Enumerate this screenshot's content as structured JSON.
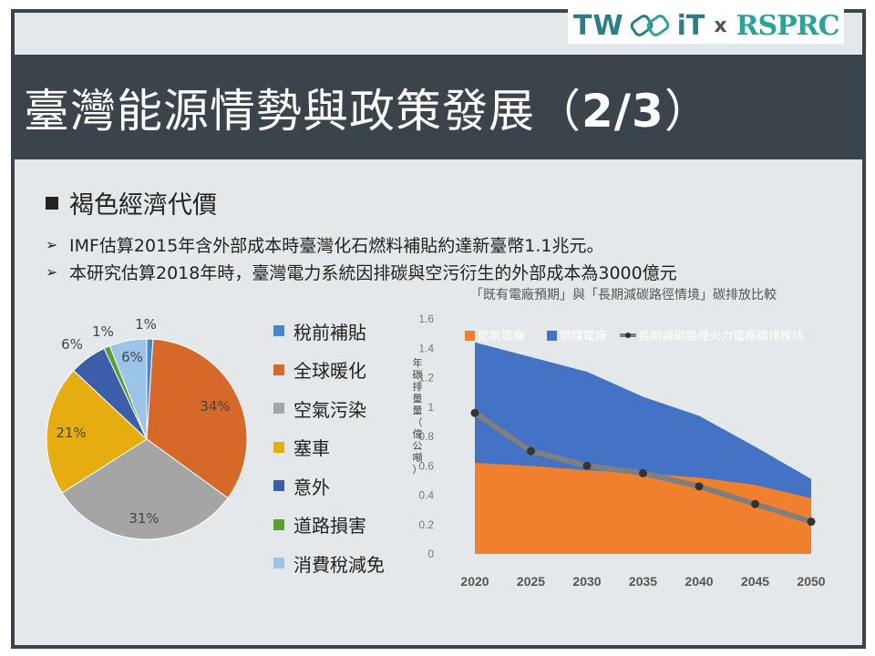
{
  "logo": {
    "left": "TW",
    "right_it": "iT",
    "x": "x",
    "partner": "RSPRC"
  },
  "title": {
    "main": "臺灣能源情勢與政策發展（",
    "part": "2/3",
    "close": "）"
  },
  "section": "褐色經濟代價",
  "bullets": [
    "IMF估算2015年含外部成本時臺灣化石燃料補貼約達新臺幣1.1兆元。",
    "本研究估算2018年時，臺灣電力系統因排碳與空污衍生的外部成本為3000億元"
  ],
  "pie": {
    "slices": [
      {
        "label": "稅前補貼",
        "value": 1,
        "pct": "1%",
        "color": "#4a86c8"
      },
      {
        "label": "全球暖化",
        "value": 34,
        "pct": "34%",
        "color": "#d6692a"
      },
      {
        "label": "空氣污染",
        "value": 31,
        "pct": "31%",
        "color": "#a5a5a5"
      },
      {
        "label": "塞車",
        "value": 21,
        "pct": "21%",
        "color": "#e6ad10"
      },
      {
        "label": "意外",
        "value": 6,
        "pct": "6%",
        "color": "#3c5ea8"
      },
      {
        "label": "道路損害",
        "value": 1,
        "pct": "1%",
        "color": "#5a9e3a"
      },
      {
        "label": "消費稅減免",
        "value": 6,
        "pct": "6%",
        "color": "#9cc3e8"
      }
    ]
  },
  "chart_data": {
    "type": "area",
    "title": "「既有電廠預期」與「長期減碳路徑情境」碳排放比較",
    "ylabel": "年碳排量量（億公噸）",
    "x": [
      "2020",
      "2025",
      "2030",
      "2035",
      "2040",
      "2045",
      "2050"
    ],
    "ylim": [
      0,
      1.6
    ],
    "yticks": [
      "0",
      "0.2",
      "0.4",
      "0.6",
      "0.8",
      "1",
      "1.2",
      "1.4",
      "1.6"
    ],
    "series": [
      {
        "name": "燃氣電廠",
        "type": "area",
        "color": "#f07f2e",
        "values": [
          0.62,
          0.6,
          0.57,
          0.55,
          0.52,
          0.47,
          0.38
        ]
      },
      {
        "name": "燃煤電廠",
        "type": "area",
        "color": "#4472c4",
        "values": [
          0.82,
          0.74,
          0.67,
          0.52,
          0.42,
          0.26,
          0.13
        ]
      },
      {
        "name": "長期減碳路徑火力電廠碳排推估",
        "type": "line",
        "color": "#7f7f7f",
        "values": [
          0.96,
          0.7,
          0.6,
          0.55,
          0.46,
          0.34,
          0.22
        ]
      }
    ]
  }
}
